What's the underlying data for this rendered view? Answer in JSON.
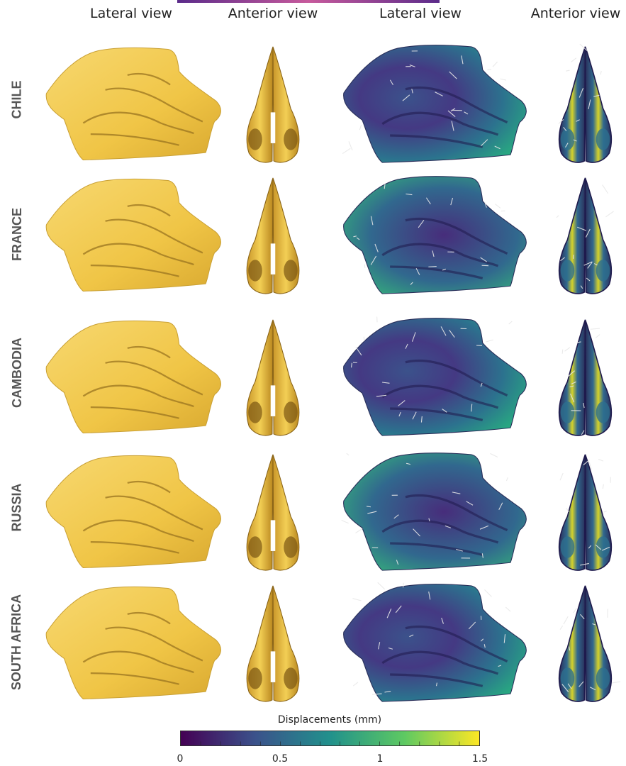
{
  "column_headers": [
    "Lateral view",
    "Anterior view",
    "Lateral view",
    "Anterior view"
  ],
  "rows": [
    {
      "label": "CHILE"
    },
    {
      "label": "FRANCE"
    },
    {
      "label": "CAMBODIA"
    },
    {
      "label": "RUSSIA"
    },
    {
      "label": "SOUTH AFRICA"
    }
  ],
  "colorbar": {
    "title": "Displacements (mm)",
    "min": 0,
    "max": 1.5,
    "ticks": [
      "0",
      "0.5",
      "1",
      "1.5"
    ],
    "colormap": [
      "#440154",
      "#3b528b",
      "#21918c",
      "#5ec962",
      "#fde725"
    ]
  },
  "colors": {
    "mesh_yellow": "#f2c94c",
    "mesh_shadow": "#b8902a",
    "anterior_gold": "#d9ad3a",
    "arrow_white": "#e8e8e8"
  }
}
